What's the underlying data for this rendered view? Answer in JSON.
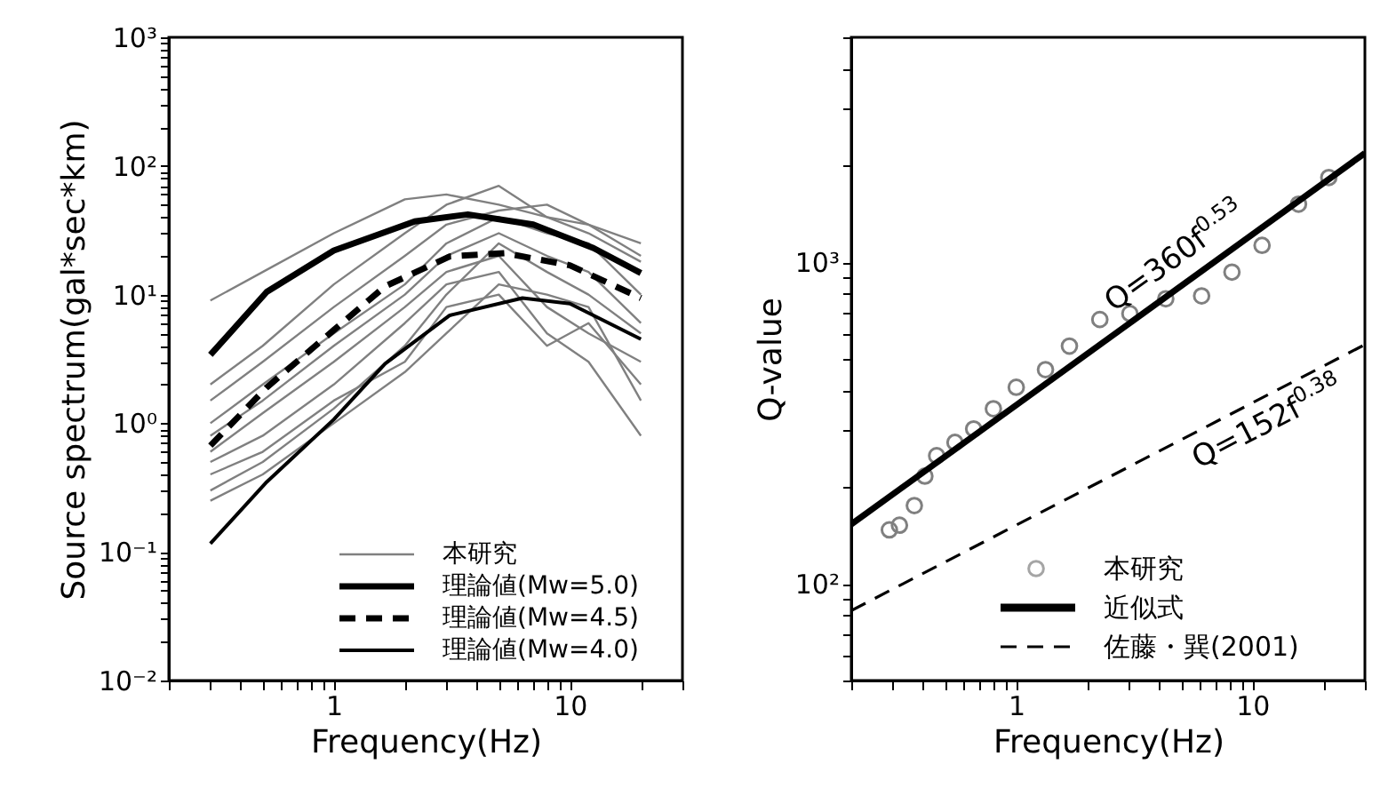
{
  "chart_data": [
    {
      "type": "line",
      "xlabel": "Frequency(Hz)",
      "ylabel": "Source spectrum(gal*sec*km)",
      "log": "xy",
      "xlim": [
        0.2,
        30
      ],
      "ylim": [
        0.01,
        1000
      ],
      "xticks": [
        {
          "value": 0.2,
          "label": null
        },
        {
          "value": 0.3,
          "label": null
        },
        {
          "value": 0.4,
          "label": null
        },
        {
          "value": 0.5,
          "label": null
        },
        {
          "value": 0.6,
          "label": null
        },
        {
          "value": 0.7,
          "label": null
        },
        {
          "value": 0.8,
          "label": null
        },
        {
          "value": 0.9,
          "label": null
        },
        {
          "value": 1,
          "label": "1"
        },
        {
          "value": 2,
          "label": null
        },
        {
          "value": 3,
          "label": null
        },
        {
          "value": 4,
          "label": null
        },
        {
          "value": 5,
          "label": null
        },
        {
          "value": 6,
          "label": null
        },
        {
          "value": 7,
          "label": null
        },
        {
          "value": 8,
          "label": null
        },
        {
          "value": 9,
          "label": null
        },
        {
          "value": 10,
          "label": "10"
        },
        {
          "value": 20,
          "label": null
        },
        {
          "value": 30,
          "label": null
        }
      ],
      "yticks": [
        {
          "value": 0.01,
          "label": "10⁻²"
        },
        {
          "value": 0.02,
          "label": null
        },
        {
          "value": 0.03,
          "label": null
        },
        {
          "value": 0.04,
          "label": null
        },
        {
          "value": 0.05,
          "label": null
        },
        {
          "value": 0.06,
          "label": null
        },
        {
          "value": 0.07,
          "label": null
        },
        {
          "value": 0.08,
          "label": null
        },
        {
          "value": 0.09,
          "label": null
        },
        {
          "value": 0.1,
          "label": "10⁻¹"
        },
        {
          "value": 0.2,
          "label": null
        },
        {
          "value": 0.3,
          "label": null
        },
        {
          "value": 0.4,
          "label": null
        },
        {
          "value": 0.5,
          "label": null
        },
        {
          "value": 0.6,
          "label": null
        },
        {
          "value": 0.7,
          "label": null
        },
        {
          "value": 0.8,
          "label": null
        },
        {
          "value": 0.9,
          "label": null
        },
        {
          "value": 1,
          "label": "10⁰"
        },
        {
          "value": 2,
          "label": null
        },
        {
          "value": 3,
          "label": null
        },
        {
          "value": 4,
          "label": null
        },
        {
          "value": 5,
          "label": null
        },
        {
          "value": 6,
          "label": null
        },
        {
          "value": 7,
          "label": null
        },
        {
          "value": 8,
          "label": null
        },
        {
          "value": 9,
          "label": null
        },
        {
          "value": 10,
          "label": "10¹"
        },
        {
          "value": 20,
          "label": null
        },
        {
          "value": 30,
          "label": null
        },
        {
          "value": 40,
          "label": null
        },
        {
          "value": 50,
          "label": null
        },
        {
          "value": 60,
          "label": null
        },
        {
          "value": 70,
          "label": null
        },
        {
          "value": 80,
          "label": null
        },
        {
          "value": 90,
          "label": null
        },
        {
          "value": 100,
          "label": "10²"
        },
        {
          "value": 200,
          "label": null
        },
        {
          "value": 300,
          "label": null
        },
        {
          "value": 400,
          "label": null
        },
        {
          "value": 500,
          "label": null
        },
        {
          "value": 600,
          "label": null
        },
        {
          "value": 700,
          "label": null
        },
        {
          "value": 800,
          "label": null
        },
        {
          "value": 900,
          "label": null
        },
        {
          "value": 1000,
          "label": "10³"
        }
      ],
      "grid": false,
      "legend": "bottom right",
      "series": [
        {
          "name": "本研究",
          "color": "#808080",
          "line_style": "solid",
          "x": [
            0.3,
            0.5,
            1,
            2,
            3,
            5,
            8,
            12,
            20
          ],
          "values": [
            9,
            15,
            30,
            55,
            60,
            50,
            40,
            35,
            25
          ]
        },
        {
          "color": "#808080",
          "line_style": "solid",
          "x": [
            0.3,
            0.5,
            1,
            2,
            3,
            5,
            8,
            12,
            20
          ],
          "values": [
            2,
            4,
            12,
            30,
            50,
            70,
            40,
            30,
            18
          ]
        },
        {
          "color": "#808080",
          "line_style": "solid",
          "x": [
            0.3,
            0.5,
            1,
            2,
            3,
            5,
            8,
            12,
            20
          ],
          "values": [
            1.5,
            3,
            8,
            20,
            35,
            45,
            50,
            35,
            20
          ]
        },
        {
          "color": "#808080",
          "line_style": "solid",
          "x": [
            0.3,
            0.5,
            1,
            2,
            3,
            5,
            8,
            12,
            20
          ],
          "values": [
            1,
            2,
            5,
            12,
            25,
            40,
            30,
            25,
            10
          ]
        },
        {
          "color": "#808080",
          "line_style": "solid",
          "x": [
            0.3,
            0.5,
            1,
            2,
            3,
            5,
            8,
            12,
            20
          ],
          "values": [
            0.8,
            1.5,
            4,
            10,
            20,
            30,
            20,
            15,
            6
          ]
        },
        {
          "color": "#808080",
          "line_style": "solid",
          "x": [
            0.3,
            0.5,
            1,
            2,
            3,
            5,
            8,
            12,
            20
          ],
          "values": [
            0.6,
            1.2,
            3,
            8,
            15,
            20,
            8,
            5,
            3
          ]
        },
        {
          "color": "#808080",
          "line_style": "solid",
          "x": [
            0.3,
            0.5,
            1,
            2,
            3,
            5,
            8,
            12,
            20
          ],
          "values": [
            0.5,
            0.8,
            2,
            6,
            12,
            15,
            5,
            3,
            0.8
          ]
        },
        {
          "color": "#808080",
          "line_style": "solid",
          "x": [
            0.3,
            0.5,
            1,
            2,
            3,
            5,
            8,
            12,
            20
          ],
          "values": [
            0.4,
            0.6,
            1.5,
            3,
            8,
            10,
            4,
            6,
            2
          ]
        },
        {
          "color": "#808080",
          "line_style": "solid",
          "x": [
            0.3,
            0.5,
            1,
            2,
            3,
            5,
            8,
            12,
            20
          ],
          "values": [
            0.25,
            0.4,
            1,
            2.5,
            5,
            12,
            10,
            8,
            1.5
          ]
        },
        {
          "color": "#808080",
          "line_style": "solid",
          "x": [
            0.3,
            0.5,
            1,
            2,
            3,
            5,
            8,
            12,
            20
          ],
          "values": [
            0.3,
            0.5,
            1.3,
            4,
            10,
            25,
            15,
            10,
            5
          ]
        },
        {
          "name": "理論値(Mw=5.0)",
          "color": "#000000",
          "line_style": "solid",
          "x": [
            0.3,
            0.52,
            1,
            2.2,
            3.7,
            7,
            12.6,
            20
          ],
          "values": [
            3.4,
            10.5,
            22,
            37,
            42,
            35,
            23,
            14.7
          ]
        },
        {
          "name": "理論値(Mw=4.5)",
          "color": "#000000",
          "line_style": "dashed",
          "x": [
            0.3,
            0.52,
            1,
            1.65,
            3.1,
            5.3,
            10,
            20
          ],
          "values": [
            0.67,
            1.9,
            5.3,
            11.6,
            19.8,
            21,
            16.9,
            9.4
          ]
        },
        {
          "name": "理論値(Mw=4.0)",
          "color": "#000000",
          "line_style": "solid",
          "x": [
            0.3,
            0.52,
            1,
            1.65,
            3.1,
            6.3,
            10,
            20
          ],
          "values": [
            0.116,
            0.35,
            1.07,
            2.9,
            6.9,
            9.4,
            8.5,
            4.5
          ]
        }
      ]
    },
    {
      "type": "scatter",
      "xlabel": "Frequency(Hz)",
      "ylabel": "Q-value",
      "log": "xy",
      "xlim": [
        0.2,
        30
      ],
      "ylim": [
        50,
        5000
      ],
      "xticks": [
        {
          "value": 0.2,
          "label": null
        },
        {
          "value": 0.3,
          "label": null
        },
        {
          "value": 0.4,
          "label": null
        },
        {
          "value": 0.5,
          "label": null
        },
        {
          "value": 0.6,
          "label": null
        },
        {
          "value": 0.7,
          "label": null
        },
        {
          "value": 0.8,
          "label": null
        },
        {
          "value": 0.9,
          "label": null
        },
        {
          "value": 1,
          "label": "1"
        },
        {
          "value": 2,
          "label": null
        },
        {
          "value": 3,
          "label": null
        },
        {
          "value": 4,
          "label": null
        },
        {
          "value": 5,
          "label": null
        },
        {
          "value": 6,
          "label": null
        },
        {
          "value": 7,
          "label": null
        },
        {
          "value": 8,
          "label": null
        },
        {
          "value": 9,
          "label": null
        },
        {
          "value": 10,
          "label": "10"
        },
        {
          "value": 20,
          "label": null
        },
        {
          "value": 30,
          "label": null
        }
      ],
      "yticks": [
        {
          "value": 50,
          "label": null
        },
        {
          "value": 60,
          "label": null
        },
        {
          "value": 70,
          "label": null
        },
        {
          "value": 80,
          "label": null
        },
        {
          "value": 90,
          "label": null
        },
        {
          "value": 100,
          "label": "10²"
        },
        {
          "value": 200,
          "label": null
        },
        {
          "value": 300,
          "label": null
        },
        {
          "value": 400,
          "label": null
        },
        {
          "value": 500,
          "label": null
        },
        {
          "value": 600,
          "label": null
        },
        {
          "value": 700,
          "label": null
        },
        {
          "value": 800,
          "label": null
        },
        {
          "value": 900,
          "label": null
        },
        {
          "value": 1000,
          "label": "10³"
        },
        {
          "value": 2000,
          "label": null
        },
        {
          "value": 3000,
          "label": null
        },
        {
          "value": 4000,
          "label": null
        },
        {
          "value": 5000,
          "label": null
        }
      ],
      "grid": false,
      "legend": "bottom right",
      "annotations": [
        {
          "text": "Q=360f$^{0.53}$",
          "x": 5.5,
          "y": 888
        },
        {
          "text": "Q=152f$^{0.38}$",
          "x": 10.4,
          "y": 370
        }
      ],
      "series": [
        {
          "name": "本研究",
          "color": "#808080",
          "marker": "circle",
          "x": [
            0.29,
            0.32,
            0.37,
            0.41,
            0.46,
            0.55,
            0.66,
            0.8,
            1.0,
            1.33,
            1.68,
            2.26,
            3.03,
            4.3,
            6.1,
            8.2,
            11.0,
            15.7,
            21.1
          ],
          "values": [
            147,
            152,
            175,
            216,
            250,
            275,
            303,
            350,
            408,
            463,
            548,
            663,
            692,
            769,
            785,
            931,
            1127,
            1514,
            1833
          ]
        },
        {
          "type": "line",
          "name": "近似式",
          "color": "#000000",
          "line_style": "solid",
          "x": [
            0.2,
            30
          ],
          "values": [
            153,
            2182
          ]
        },
        {
          "type": "line",
          "name": "佐藤・巽(2001)",
          "color": "#000000",
          "line_style": "dashed",
          "x": [
            0.2,
            30
          ],
          "values": [
            82.5,
            554
          ]
        }
      ]
    }
  ]
}
